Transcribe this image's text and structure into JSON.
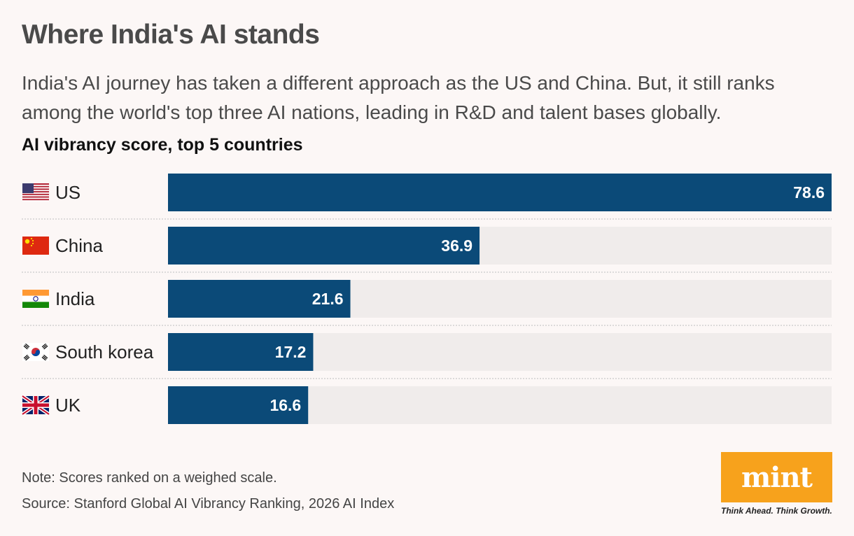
{
  "header": {
    "title": "Where India's AI stands",
    "subtitle": "India's AI journey has taken a different approach as the US and China. But, it still ranks among the world's top three AI nations, leading in R&D and talent bases globally."
  },
  "chart_data": {
    "type": "bar",
    "orientation": "horizontal",
    "title": "AI vibrancy score, top 5 countries",
    "categories": [
      "US",
      "China",
      "India",
      "South korea",
      "UK"
    ],
    "values": [
      78.6,
      36.9,
      21.6,
      17.2,
      16.6
    ],
    "xlim": [
      0,
      78.6
    ],
    "grid": false,
    "legend": "none",
    "icons": [
      "us-flag-icon",
      "china-flag-icon",
      "india-flag-icon",
      "south-korea-flag-icon",
      "uk-flag-icon"
    ],
    "colors": {
      "bar": "#0b4a78",
      "track": "#f0eceb",
      "label_inside": "#ffffff",
      "separator": "#bdbdbd"
    }
  },
  "footer": {
    "note": "Note: Scores ranked on a weighed scale.",
    "source": "Source: Stanford Global AI Vibrancy Ranking, 2026 AI Index"
  },
  "brand": {
    "logo_text": "mint",
    "tagline": "Think Ahead. Think Growth.",
    "color": "#f7a21c"
  }
}
